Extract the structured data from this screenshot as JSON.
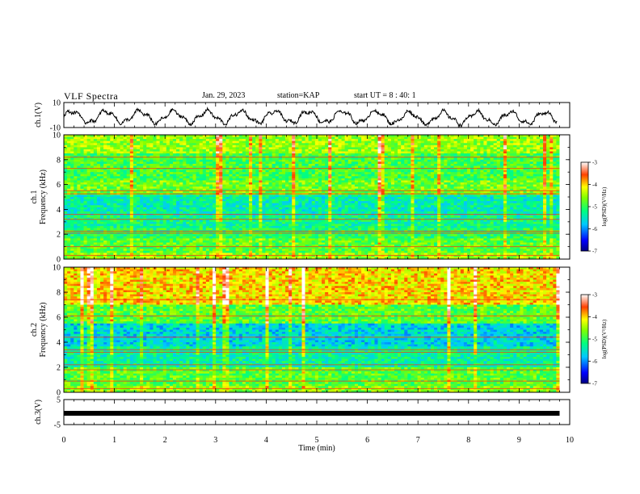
{
  "header": {
    "title": "VLF Spectra",
    "date": "Jan. 29, 2023",
    "station": "station=KAP",
    "start": "start UT = 8 : 40: 1"
  },
  "colors": {
    "scale": [
      "#000080",
      "#0000ff",
      "#00a0ff",
      "#00ffff",
      "#00ff60",
      "#80ff00",
      "#ffff00",
      "#ffb000",
      "#ff3000",
      "#ffffff"
    ]
  },
  "chart_data": [
    {
      "type": "line",
      "ylabel": "ch.1(V)",
      "ylim": [
        -10,
        10
      ],
      "yticks": [
        "10",
        "-10"
      ],
      "xlim": [
        0,
        10
      ],
      "series": [
        {
          "values": "oscillating waveform between about -8 and 5 V"
        }
      ]
    },
    {
      "type": "heatmap",
      "ylabel": "ch.1\nFrequency (kHz)",
      "ylim": [
        0,
        10
      ],
      "yticks": [
        "0",
        "2",
        "4",
        "6",
        "8",
        "10"
      ],
      "xlim": [
        0,
        10
      ],
      "colorbar": {
        "label": "log(PSD)(V²/Hz)",
        "range": [
          -7,
          -3
        ],
        "ticks": [
          "-3",
          "-4",
          "-5",
          "-6",
          "-7"
        ]
      }
    },
    {
      "type": "heatmap",
      "ylabel": "ch.2\nFrequency (kHz)",
      "ylim": [
        0,
        10
      ],
      "yticks": [
        "0",
        "2",
        "4",
        "6",
        "8",
        "10"
      ],
      "xlim": [
        0,
        10
      ],
      "colorbar": {
        "label": "log(PSD)(V²/Hz)",
        "range": [
          -7,
          -3
        ],
        "ticks": [
          "-3",
          "-4",
          "-5",
          "-6",
          "-7"
        ]
      }
    },
    {
      "type": "line",
      "ylabel": "ch.3(V)",
      "ylim": [
        -5,
        5
      ],
      "yticks": [
        "5",
        "-5"
      ],
      "xlim": [
        0,
        10
      ],
      "series": [
        {
          "values": "constant near -0.5 V"
        }
      ]
    }
  ],
  "xaxis": {
    "label": "Time (min)",
    "ticks": [
      "0",
      "1",
      "2",
      "3",
      "4",
      "5",
      "6",
      "7",
      "8",
      "9",
      "10"
    ]
  }
}
